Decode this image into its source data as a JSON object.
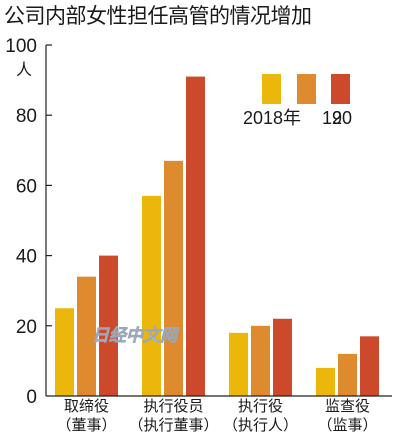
{
  "title": "公司内部女性担任高管的情况增加",
  "colors": {
    "axis": "#222222",
    "series": [
      "#ebb70b",
      "#de8a2e",
      "#cc4a2b"
    ]
  },
  "watermark": "日经中文网",
  "chart_data": {
    "type": "bar",
    "title": "公司内部女性担任高管的情况增加",
    "y_unit": "人",
    "ylim": [
      0,
      100
    ],
    "yticks": [
      0,
      20,
      40,
      60,
      80,
      100
    ],
    "grid": false,
    "legend_placement": "top-right",
    "categories": [
      [
        "取缔役",
        "（董事）"
      ],
      [
        "执行役员",
        "（执行董事）"
      ],
      [
        "执行役",
        "（执行人）"
      ],
      [
        "监查役",
        "（监事）"
      ]
    ],
    "legend_labels": [
      "2018年",
      "19",
      "20"
    ],
    "series": [
      {
        "name": "2018",
        "values": [
          25,
          57,
          18,
          8
        ]
      },
      {
        "name": "19",
        "values": [
          34,
          67,
          20,
          12
        ]
      },
      {
        "name": "20",
        "values": [
          40,
          91,
          22,
          17
        ]
      }
    ]
  }
}
